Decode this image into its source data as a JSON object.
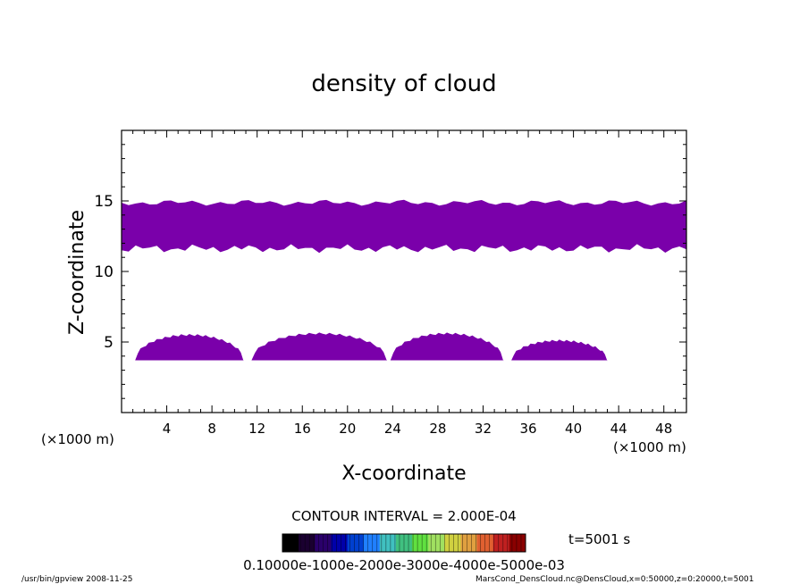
{
  "chart_data": {
    "type": "heatmap",
    "title": "density of cloud",
    "xlabel": "X-coordinate",
    "ylabel": "Z-coordinate",
    "x_unit_left": "(×1000 m)",
    "x_unit_right": "(×1000 m)",
    "xlim": [
      0,
      50
    ],
    "ylim": [
      0,
      20
    ],
    "x_ticks": [
      4,
      8,
      12,
      16,
      20,
      24,
      28,
      32,
      36,
      40,
      44,
      48
    ],
    "y_ticks": [
      5,
      10,
      15
    ],
    "fill_color": "#7a00aa",
    "layers": [
      {
        "x": [
          0,
          50
        ],
        "z": [
          11.5,
          15
        ]
      }
    ],
    "domes": [
      {
        "x": [
          1.2,
          10.8
        ],
        "z_base": 3.7,
        "z_top": 5.5
      },
      {
        "x": [
          11.5,
          23.5
        ],
        "z_base": 3.7,
        "z_top": 5.6
      },
      {
        "x": [
          23.8,
          33.8
        ],
        "z_base": 3.7,
        "z_top": 5.6
      },
      {
        "x": [
          34.5,
          43.0
        ],
        "z_base": 3.7,
        "z_top": 5.1
      }
    ],
    "contour_interval": "CONTOUR INTERVAL = 2.000E-04",
    "time_label": "t=5001 s",
    "colorbar_labels": "0.10000e-1000e-2000e-3000e-4000e-5000e-03",
    "colorbar_colors": [
      "#000000",
      "#1a0030",
      "#2a006a",
      "#0000aa",
      "#0040d0",
      "#2080ff",
      "#40c0c0",
      "#40c080",
      "#60e040",
      "#a0e060",
      "#d0d040",
      "#e0a040",
      "#e06030",
      "#c02020",
      "#8a0000"
    ]
  },
  "footer": {
    "left": "/usr/bin/gpview   2008-11-25",
    "right": "MarsCond_DensCloud.nc@DensCloud,x=0:50000,z=0:20000,t=5001"
  }
}
